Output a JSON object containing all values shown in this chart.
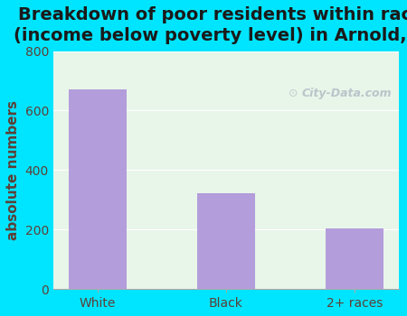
{
  "title": "Breakdown of poor residents within races\n(income below poverty level) in Arnold, PA",
  "categories": [
    "White",
    "Black",
    "2+ races"
  ],
  "values": [
    672,
    322,
    205
  ],
  "bar_color": "#b39ddb",
  "ylabel": "absolute numbers",
  "ylim": [
    0,
    800
  ],
  "yticks": [
    0,
    200,
    400,
    600,
    800
  ],
  "background_outer": "#00e5ff",
  "background_inner": "#e8f5e9",
  "title_fontsize": 14,
  "label_fontsize": 11,
  "tick_fontsize": 10,
  "ylabel_color": "#5d4037",
  "tick_color": "#5d4037",
  "title_color": "#1a1a1a",
  "watermark_text": "City-Data.com",
  "watermark_color": "#b0bec5"
}
